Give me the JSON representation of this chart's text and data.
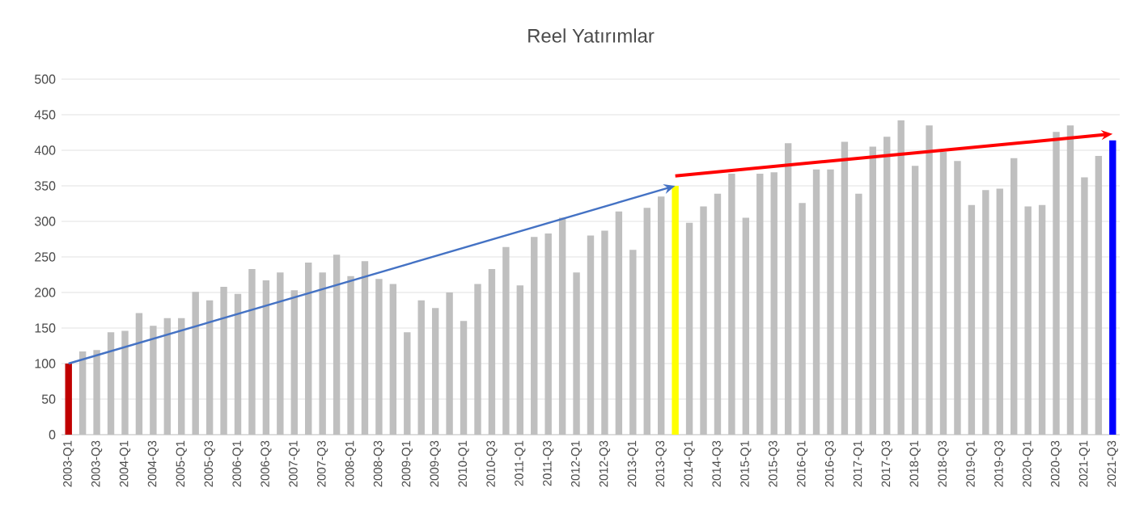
{
  "chart_data": {
    "type": "bar",
    "title": "Reel Yatırımlar",
    "categories": [
      "2003-Q1",
      null,
      "2003-Q3",
      null,
      "2004-Q1",
      null,
      "2004-Q3",
      null,
      "2005-Q1",
      null,
      "2005-Q3",
      null,
      "2006-Q1",
      null,
      "2006-Q3",
      null,
      "2007-Q1",
      null,
      "2007-Q3",
      null,
      "2008-Q1",
      null,
      "2008-Q3",
      null,
      "2009-Q1",
      null,
      "2009-Q3",
      null,
      "2010-Q1",
      null,
      "2010-Q3",
      null,
      "2011-Q1",
      null,
      "2011-Q3",
      null,
      "2012-Q1",
      null,
      "2012-Q3",
      null,
      "2013-Q1",
      null,
      "2013-Q3",
      null,
      "2014-Q1",
      null,
      "2014-Q3",
      null,
      "2015-Q1",
      null,
      "2015-Q3",
      null,
      "2016-Q1",
      null,
      "2016-Q3",
      null,
      "2017-Q1",
      null,
      "2017-Q3",
      null,
      "2018-Q1",
      null,
      "2018-Q3",
      null,
      "2019-Q1",
      null,
      "2019-Q3",
      null,
      "2020-Q1",
      null,
      "2020-Q3",
      null,
      "2021-Q1",
      null,
      "2021-Q3"
    ],
    "series": [
      {
        "colors": [
          "#c00000",
          "#bfbfbf",
          "#bfbfbf",
          "#bfbfbf",
          "#bfbfbf",
          "#bfbfbf",
          "#bfbfbf",
          "#bfbfbf",
          "#bfbfbf",
          "#bfbfbf",
          "#bfbfbf",
          "#bfbfbf",
          "#bfbfbf",
          "#bfbfbf",
          "#bfbfbf",
          "#bfbfbf",
          "#bfbfbf",
          "#bfbfbf",
          "#bfbfbf",
          "#bfbfbf",
          "#bfbfbf",
          "#bfbfbf",
          "#bfbfbf",
          "#bfbfbf",
          "#bfbfbf",
          "#bfbfbf",
          "#bfbfbf",
          "#bfbfbf",
          "#bfbfbf",
          "#bfbfbf",
          "#bfbfbf",
          "#bfbfbf",
          "#bfbfbf",
          "#bfbfbf",
          "#bfbfbf",
          "#bfbfbf",
          "#bfbfbf",
          "#bfbfbf",
          "#bfbfbf",
          "#bfbfbf",
          "#bfbfbf",
          "#bfbfbf",
          "#bfbfbf",
          "#ffff00",
          "#bfbfbf",
          "#bfbfbf",
          "#bfbfbf",
          "#bfbfbf",
          "#bfbfbf",
          "#bfbfbf",
          "#bfbfbf",
          "#bfbfbf",
          "#bfbfbf",
          "#bfbfbf",
          "#bfbfbf",
          "#bfbfbf",
          "#bfbfbf",
          "#bfbfbf",
          "#bfbfbf",
          "#bfbfbf",
          "#bfbfbf",
          "#bfbfbf",
          "#bfbfbf",
          "#bfbfbf",
          "#bfbfbf",
          "#bfbfbf",
          "#bfbfbf",
          "#bfbfbf",
          "#bfbfbf",
          "#bfbfbf",
          "#bfbfbf",
          "#bfbfbf",
          "#bfbfbf",
          "#bfbfbf",
          "#0000ff"
        ],
        "values": [
          100,
          117,
          119,
          144,
          146,
          171,
          153,
          164,
          164,
          201,
          189,
          208,
          198,
          233,
          217,
          228,
          203,
          242,
          228,
          253,
          223,
          244,
          219,
          212,
          144,
          189,
          178,
          200,
          160,
          212,
          233,
          264,
          210,
          278,
          283,
          305,
          228,
          280,
          287,
          314,
          260,
          319,
          335,
          350,
          298,
          321,
          339,
          367,
          305,
          367,
          369,
          410,
          326,
          373,
          373,
          412,
          339,
          405,
          419,
          442,
          378,
          435,
          398,
          385,
          323,
          344,
          346,
          389,
          321,
          323,
          426,
          435,
          362,
          392,
          414
        ]
      },
      {
        "type": "line",
        "color": "#4472c4",
        "values": [
          100,
          null,
          null,
          null,
          null,
          null,
          null,
          null,
          null,
          null,
          null,
          null,
          null,
          null,
          null,
          null,
          null,
          null,
          null,
          null,
          null,
          null,
          null,
          null,
          null,
          null,
          null,
          null,
          null,
          null,
          null,
          null,
          null,
          null,
          null,
          null,
          null,
          null,
          null,
          null,
          null,
          null,
          null,
          350,
          null,
          null,
          null,
          null,
          null,
          null,
          null,
          null,
          null,
          null,
          null,
          null,
          null,
          null,
          null,
          null,
          null,
          null,
          null,
          null,
          null,
          null,
          null,
          null,
          null,
          null,
          null,
          null,
          null,
          null,
          null
        ]
      },
      {
        "type": "line",
        "color": "#ff0000",
        "values": [
          null,
          null,
          null,
          null,
          null,
          null,
          null,
          null,
          null,
          null,
          null,
          null,
          null,
          null,
          null,
          null,
          null,
          null,
          null,
          null,
          null,
          null,
          null,
          null,
          null,
          null,
          null,
          null,
          null,
          null,
          null,
          null,
          null,
          null,
          null,
          null,
          null,
          null,
          null,
          null,
          null,
          null,
          null,
          364,
          null,
          null,
          null,
          null,
          null,
          null,
          null,
          null,
          null,
          null,
          null,
          null,
          null,
          null,
          null,
          null,
          null,
          null,
          null,
          null,
          null,
          null,
          null,
          null,
          null,
          null,
          null,
          null,
          null,
          null,
          423
        ]
      }
    ],
    "ylim": [
      0,
      500
    ],
    "yticks": [
      0,
      50,
      100,
      150,
      200,
      250,
      300,
      350,
      400,
      450,
      500
    ],
    "grid": "y"
  }
}
